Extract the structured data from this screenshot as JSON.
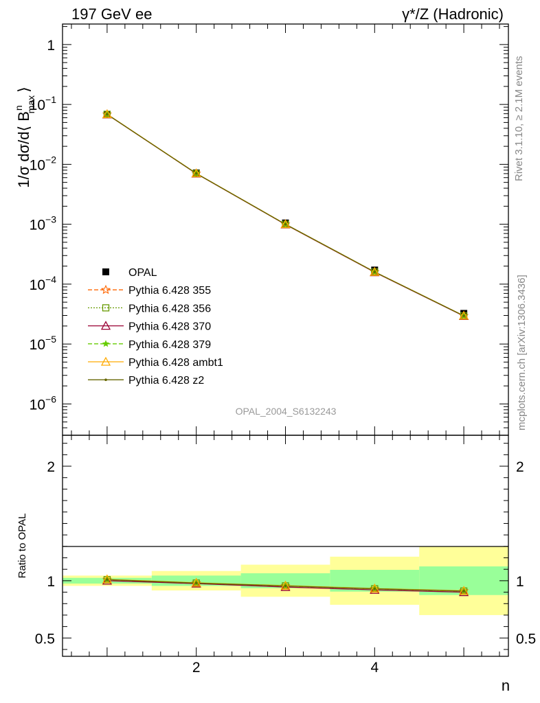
{
  "header": {
    "left": "197 GeV ee",
    "right": "γ*/Z (Hadronic)"
  },
  "side_text": {
    "rivet": "Rivet 3.1.10, ≥ 2.1M events",
    "mcplots": "mcplots.cern.ch [arXiv:1306.3436]"
  },
  "watermark": "OPAL_2004_S6132243",
  "colors": {
    "data": "#000000",
    "p355": "#ff6600",
    "p356": "#669900",
    "p370": "#990033",
    "p379": "#66cc00",
    "ambt1": "#ffaa00",
    "z2": "#666600",
    "band_inner": "#99ff99",
    "band_outer": "#ffff99"
  },
  "chart_data": [
    {
      "type": "line",
      "panel": "main",
      "ylabel": "1/σ dσ/d⟨ B",
      "ylabel_sup": "n",
      "ylabel_sub": "max",
      "ylabel_end": "⟩",
      "yscale": "log",
      "xlim": [
        0.5,
        5.5
      ],
      "ylim": [
        3e-07,
        2.2
      ],
      "y_ticks": [
        {
          "value": 1,
          "label": "1"
        },
        {
          "value": 0.1,
          "label": "10",
          "exp": "−1"
        },
        {
          "value": 0.01,
          "label": "10",
          "exp": "−2"
        },
        {
          "value": 0.001,
          "label": "10",
          "exp": "−3"
        },
        {
          "value": 0.0001,
          "label": "10",
          "exp": "−4"
        },
        {
          "value": 1e-05,
          "label": "10",
          "exp": "−5"
        },
        {
          "value": 1e-06,
          "label": "10",
          "exp": "−6"
        }
      ],
      "x": [
        1,
        2,
        3,
        4,
        5
      ],
      "series": [
        {
          "name": "OPAL",
          "key": "data",
          "marker": "square",
          "values": [
            0.068,
            0.0072,
            0.00105,
            0.000172,
            3.25e-05
          ]
        },
        {
          "name": "Pythia 6.428 355",
          "key": "p355",
          "marker": "star-open",
          "dash": "6,3",
          "values": [
            0.0685,
            0.00705,
            0.001,
            0.00016,
            2.96e-05
          ]
        },
        {
          "name": "Pythia 6.428 356",
          "key": "p356",
          "marker": "square-open",
          "dash": "2,2",
          "values": [
            0.0685,
            0.00705,
            0.001,
            0.00016,
            2.96e-05
          ]
        },
        {
          "name": "Pythia 6.428 370",
          "key": "p370",
          "marker": "triangle-open",
          "dash": "",
          "values": [
            0.068,
            0.007,
            0.00099,
            0.000158,
            2.93e-05
          ]
        },
        {
          "name": "Pythia 6.428 379",
          "key": "p379",
          "marker": "star",
          "dash": "6,3",
          "values": [
            0.0685,
            0.00705,
            0.001,
            0.00016,
            2.96e-05
          ]
        },
        {
          "name": "Pythia 6.428 ambt1",
          "key": "ambt1",
          "marker": "triangle-open",
          "dash": "",
          "values": [
            0.0688,
            0.00707,
            0.001,
            0.00016,
            2.97e-05
          ]
        },
        {
          "name": "Pythia 6.428 z2",
          "key": "z2",
          "marker": "dot",
          "dash": "",
          "values": [
            0.0685,
            0.00705,
            0.001,
            0.00016,
            2.96e-05
          ]
        }
      ]
    },
    {
      "type": "line",
      "panel": "ratio",
      "ylabel": "Ratio to OPAL",
      "xlabel": "n",
      "xlim": [
        0.5,
        5.5
      ],
      "ylim": [
        0.34,
        2.27
      ],
      "y_ticks": [
        {
          "value": 0.5,
          "label": "0.5"
        },
        {
          "value": 1,
          "label": "1"
        },
        {
          "value": 2,
          "label": "2"
        }
      ],
      "x_ticks": [
        {
          "value": 2,
          "label": "2"
        },
        {
          "value": 4,
          "label": "4"
        }
      ],
      "bands": [
        {
          "x": [
            0.5,
            1.5
          ],
          "inner": [
            0.975,
            1.025
          ],
          "outer": [
            0.955,
            1.045
          ]
        },
        {
          "x": [
            1.5,
            2.5
          ],
          "inner": [
            0.955,
            1.045
          ],
          "outer": [
            0.915,
            1.085
          ]
        },
        {
          "x": [
            2.5,
            3.5
          ],
          "inner": [
            0.935,
            1.065
          ],
          "outer": [
            0.86,
            1.14
          ]
        },
        {
          "x": [
            3.5,
            4.5
          ],
          "inner": [
            0.905,
            1.095
          ],
          "outer": [
            0.79,
            1.21
          ]
        },
        {
          "x": [
            4.5,
            5.5
          ],
          "inner": [
            0.875,
            1.125
          ],
          "outer": [
            0.7,
            1.3
          ]
        }
      ],
      "x": [
        1,
        2,
        3,
        4,
        5
      ],
      "series": [
        {
          "name": "Pythia 6.428 355",
          "key": "p355",
          "marker": "star-open",
          "dash": "6,3",
          "values": [
            1.01,
            0.98,
            0.955,
            0.93,
            0.91
          ]
        },
        {
          "name": "Pythia 6.428 356",
          "key": "p356",
          "marker": "square-open",
          "dash": "2,2",
          "values": [
            1.01,
            0.98,
            0.955,
            0.93,
            0.91
          ]
        },
        {
          "name": "Pythia 6.428 370",
          "key": "p370",
          "marker": "triangle-open",
          "dash": "",
          "values": [
            1.0,
            0.975,
            0.945,
            0.92,
            0.9
          ]
        },
        {
          "name": "Pythia 6.428 379",
          "key": "p379",
          "marker": "star",
          "dash": "6,3",
          "values": [
            1.01,
            0.98,
            0.955,
            0.93,
            0.91
          ]
        },
        {
          "name": "Pythia 6.428 ambt1",
          "key": "ambt1",
          "marker": "triangle-open",
          "dash": "",
          "values": [
            1.012,
            0.982,
            0.957,
            0.932,
            0.912
          ]
        },
        {
          "name": "Pythia 6.428 z2",
          "key": "z2",
          "marker": "dot",
          "dash": "",
          "values": [
            1.01,
            0.98,
            0.955,
            0.93,
            0.91
          ]
        }
      ]
    }
  ]
}
